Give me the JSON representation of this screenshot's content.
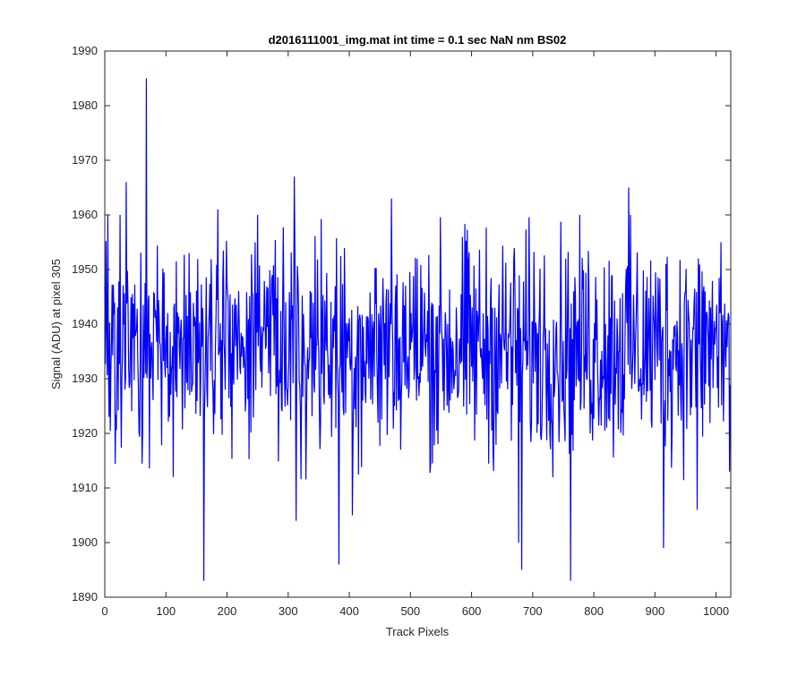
{
  "chart_data": {
    "type": "line",
    "title": "d2016111001_img.mat int time = 0.1 sec  NaN nm BS02",
    "xlabel": "Track Pixels",
    "ylabel": "Signal (ADU) at pixel 305",
    "xlim": [
      0,
      1024
    ],
    "ylim": [
      1890,
      1990
    ],
    "xticks": [
      0,
      100,
      200,
      300,
      400,
      500,
      600,
      700,
      800,
      900,
      1000
    ],
    "yticks": [
      1890,
      1900,
      1910,
      1920,
      1930,
      1940,
      1950,
      1960,
      1970,
      1980,
      1990
    ],
    "grid": false,
    "legend": "none",
    "colors": {
      "line": "#0000ff",
      "axis": "#262626"
    },
    "series": [
      {
        "count": 1024,
        "mean": 1936,
        "notable_points": [
          {
            "x": 35,
            "y": 1966
          },
          {
            "x": 68,
            "y": 1985
          },
          {
            "x": 112,
            "y": 1912
          },
          {
            "x": 162,
            "y": 1893
          },
          {
            "x": 185,
            "y": 1961
          },
          {
            "x": 310,
            "y": 1967
          },
          {
            "x": 313,
            "y": 1904
          },
          {
            "x": 383,
            "y": 1896
          },
          {
            "x": 405,
            "y": 1905
          },
          {
            "x": 469,
            "y": 1963
          },
          {
            "x": 677,
            "y": 1900
          },
          {
            "x": 682,
            "y": 1895
          },
          {
            "x": 762,
            "y": 1893
          },
          {
            "x": 857,
            "y": 1965
          },
          {
            "x": 914,
            "y": 1899
          },
          {
            "x": 969,
            "y": 1906
          },
          {
            "x": 1008,
            "y": 1955
          },
          {
            "x": 1022,
            "y": 1913
          }
        ]
      }
    ]
  }
}
